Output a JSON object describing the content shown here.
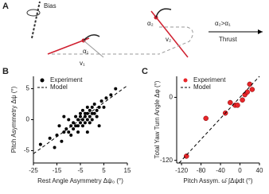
{
  "diagram": {
    "panel_label": "A",
    "bias": "Bias",
    "alpha1": "α₁",
    "v1": "v₁",
    "alpha2": "α₂",
    "v2": "v₂",
    "condition": "α₂>α₁",
    "thrust": "Thrust"
  },
  "chart_data": [
    {
      "type": "scatter",
      "panel_label": "B",
      "xlabel": "Rest Angle Asymmetry Δψ₀ (°)",
      "ylabel": "Pitch Asymmetry Δψ (°)",
      "xlim": [
        -25,
        15
      ],
      "xticks": [
        -25,
        -15,
        -5,
        5,
        15
      ],
      "ylim": [
        -7,
        7
      ],
      "yticks": [
        -5,
        0,
        5
      ],
      "legend": "upper left",
      "series": [
        {
          "name": "Experiment",
          "color": "#000000",
          "mode": "markers",
          "x": [
            -22,
            -18,
            -15,
            -14,
            -13,
            -12,
            -11,
            -10,
            -10,
            -9,
            -9,
            -8,
            -8,
            -7,
            -7,
            -6,
            -6,
            -6,
            -5,
            -5,
            -5,
            -4,
            -4,
            -4,
            -3,
            -3,
            -3,
            -2,
            -2,
            -2,
            -1,
            -1,
            -1,
            0,
            0,
            0,
            1,
            1,
            2,
            2,
            3,
            4,
            5,
            6,
            8,
            10,
            -16,
            -12,
            -2,
            3
          ],
          "values": [
            -4,
            -3,
            -2.5,
            -1,
            -3.5,
            -2,
            -1.5,
            -2,
            0,
            -1,
            -2.5,
            -0.5,
            -1.5,
            -1,
            0.5,
            -1,
            0,
            -2,
            0.5,
            -0.5,
            1,
            0,
            -1,
            1.5,
            0.5,
            -0.5,
            1,
            0,
            1,
            2,
            0.5,
            1.5,
            -0.5,
            1,
            0,
            2,
            1,
            2.5,
            1.5,
            0.5,
            2,
            3,
            2,
            3.5,
            4,
            5,
            -4.5,
            0.5,
            -2,
            -1
          ]
        },
        {
          "name": "Model",
          "color": "#000000",
          "mode": "dashed",
          "x": [
            -25,
            15
          ],
          "values": [
            -5.5,
            5.5
          ]
        }
      ]
    },
    {
      "type": "scatter",
      "panel_label": "C",
      "xlabel": "Pitch Assym. ω̄ ∫Δψdt (°)",
      "ylabel": "Total Yaw Turn Angle Δφ (°)",
      "xlim": [
        -130,
        40
      ],
      "xticks": [
        -120,
        -80,
        -40,
        0,
        40
      ],
      "ylim": [
        -125,
        40
      ],
      "yticks": [
        -120,
        0
      ],
      "legend": "upper left",
      "series": [
        {
          "name": "Experiment",
          "color": "#e8262a",
          "mode": "markers",
          "x": [
            -110,
            -70,
            -30,
            -20,
            -10,
            -5,
            5,
            10,
            15,
            20,
            25
          ],
          "values": [
            -112,
            -40,
            -30,
            -10,
            -15,
            -15,
            -5,
            5,
            10,
            25,
            15
          ]
        },
        {
          "name": "Model",
          "color": "#000000",
          "mode": "dashed",
          "x": [
            -125,
            40
          ],
          "values": [
            -125,
            40
          ]
        }
      ]
    }
  ]
}
